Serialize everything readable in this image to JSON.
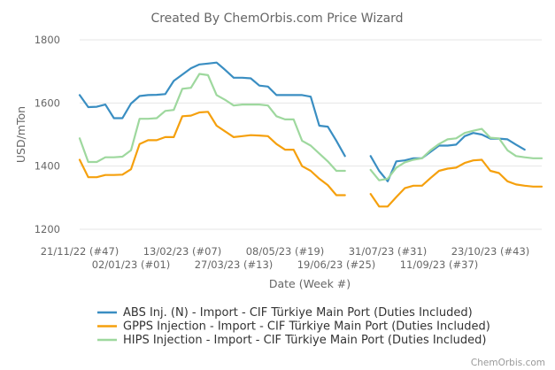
{
  "chart_data": {
    "type": "line",
    "title": "Created By ChemOrbis.com Price Wizard",
    "xlabel": "Date (Week #)",
    "ylabel": "USD/mTon",
    "ylim": [
      1200,
      1800
    ],
    "yticks": [
      1200,
      1400,
      1600,
      1800
    ],
    "x_start": "21/11/22",
    "x_end": "04/12/23",
    "xtick_labels": [
      {
        "label": "21/11/22 (#47)",
        "date": "2022-11-21"
      },
      {
        "label": "02/01/23 (#01)",
        "date": "2023-01-02"
      },
      {
        "label": "13/02/23 (#07)",
        "date": "2023-02-13"
      },
      {
        "label": "27/03/23 (#13)",
        "date": "2023-03-27"
      },
      {
        "label": "08/05/23 (#19)",
        "date": "2023-05-08"
      },
      {
        "label": "19/06/23 (#25)",
        "date": "2023-06-19"
      },
      {
        "label": "31/07/23 (#31)",
        "date": "2023-07-31"
      },
      {
        "label": "11/09/23 (#37)",
        "date": "2023-09-11"
      },
      {
        "label": "23/10/23 (#43)",
        "date": "2023-10-23"
      }
    ],
    "legend_position": "bottom",
    "grid": true,
    "series": [
      {
        "name": "ABS Inj. (N) - Import - CIF Türkiye Main Port  (Duties Included)",
        "color": "#3a8ec2",
        "segments": [
          [
            [
              "2022-11-21",
              1625
            ],
            [
              "2022-11-28",
              1587
            ],
            [
              "2022-12-05",
              1588
            ],
            [
              "2022-12-12",
              1595
            ],
            [
              "2022-12-19",
              1552
            ],
            [
              "2022-12-26",
              1552
            ],
            [
              "2023-01-02",
              1598
            ],
            [
              "2023-01-09",
              1622
            ],
            [
              "2023-01-16",
              1625
            ],
            [
              "2023-01-23",
              1626
            ],
            [
              "2023-01-30",
              1628
            ],
            [
              "2023-02-06",
              1670
            ],
            [
              "2023-02-13",
              1690
            ],
            [
              "2023-02-20",
              1710
            ],
            [
              "2023-02-27",
              1722
            ],
            [
              "2023-03-06",
              1725
            ],
            [
              "2023-03-13",
              1728
            ],
            [
              "2023-03-20",
              1705
            ],
            [
              "2023-03-27",
              1680
            ],
            [
              "2023-04-03",
              1680
            ],
            [
              "2023-04-10",
              1678
            ],
            [
              "2023-04-17",
              1655
            ],
            [
              "2023-04-24",
              1652
            ],
            [
              "2023-05-01",
              1625
            ],
            [
              "2023-05-08",
              1625
            ],
            [
              "2023-05-15",
              1625
            ],
            [
              "2023-05-22",
              1625
            ],
            [
              "2023-05-29",
              1620
            ],
            [
              "2023-06-05",
              1528
            ],
            [
              "2023-06-12",
              1525
            ],
            [
              "2023-06-19",
              1480
            ],
            [
              "2023-06-26",
              1432
            ]
          ],
          [
            [
              "2023-07-17",
              1432
            ],
            [
              "2023-07-24",
              1385
            ],
            [
              "2023-07-31",
              1352
            ],
            [
              "2023-08-07",
              1415
            ],
            [
              "2023-08-14",
              1418
            ],
            [
              "2023-08-21",
              1425
            ],
            [
              "2023-08-28",
              1425
            ],
            [
              "2023-09-04",
              1445
            ],
            [
              "2023-09-11",
              1465
            ],
            [
              "2023-09-18",
              1465
            ],
            [
              "2023-09-25",
              1468
            ],
            [
              "2023-10-02",
              1495
            ],
            [
              "2023-10-09",
              1505
            ],
            [
              "2023-10-16",
              1500
            ],
            [
              "2023-10-23",
              1487
            ],
            [
              "2023-10-30",
              1487
            ],
            [
              "2023-11-06",
              1485
            ],
            [
              "2023-11-13",
              1468
            ],
            [
              "2023-11-20",
              1452
            ]
          ]
        ]
      },
      {
        "name": "GPPS Injection - Import - CIF Türkiye Main Port  (Duties Included)",
        "color": "#f5a00d",
        "segments": [
          [
            [
              "2022-11-21",
              1420
            ],
            [
              "2022-11-28",
              1365
            ],
            [
              "2022-12-05",
              1365
            ],
            [
              "2022-12-12",
              1372
            ],
            [
              "2022-12-19",
              1372
            ],
            [
              "2022-12-26",
              1373
            ],
            [
              "2023-01-02",
              1390
            ],
            [
              "2023-01-09",
              1470
            ],
            [
              "2023-01-16",
              1482
            ],
            [
              "2023-01-23",
              1482
            ],
            [
              "2023-01-30",
              1492
            ],
            [
              "2023-02-06",
              1492
            ],
            [
              "2023-02-13",
              1558
            ],
            [
              "2023-02-20",
              1560
            ],
            [
              "2023-02-27",
              1570
            ],
            [
              "2023-03-06",
              1572
            ],
            [
              "2023-03-13",
              1528
            ],
            [
              "2023-03-20",
              1510
            ],
            [
              "2023-03-27",
              1492
            ],
            [
              "2023-04-03",
              1495
            ],
            [
              "2023-04-10",
              1498
            ],
            [
              "2023-04-17",
              1497
            ],
            [
              "2023-04-24",
              1495
            ],
            [
              "2023-05-01",
              1470
            ],
            [
              "2023-05-08",
              1452
            ],
            [
              "2023-05-15",
              1452
            ],
            [
              "2023-05-22",
              1400
            ],
            [
              "2023-05-29",
              1385
            ],
            [
              "2023-06-05",
              1360
            ],
            [
              "2023-06-12",
              1340
            ],
            [
              "2023-06-19",
              1308
            ],
            [
              "2023-06-26",
              1308
            ]
          ],
          [
            [
              "2023-07-17",
              1312
            ],
            [
              "2023-07-24",
              1272
            ],
            [
              "2023-07-31",
              1272
            ],
            [
              "2023-08-07",
              1302
            ],
            [
              "2023-08-14",
              1330
            ],
            [
              "2023-08-21",
              1338
            ],
            [
              "2023-08-28",
              1338
            ],
            [
              "2023-09-04",
              1362
            ],
            [
              "2023-09-11",
              1385
            ],
            [
              "2023-09-18",
              1392
            ],
            [
              "2023-09-25",
              1395
            ],
            [
              "2023-10-02",
              1410
            ],
            [
              "2023-10-09",
              1418
            ],
            [
              "2023-10-16",
              1420
            ],
            [
              "2023-10-23",
              1385
            ],
            [
              "2023-10-30",
              1378
            ],
            [
              "2023-11-06",
              1352
            ],
            [
              "2023-11-13",
              1342
            ],
            [
              "2023-11-20",
              1338
            ],
            [
              "2023-11-27",
              1335
            ],
            [
              "2023-12-04",
              1335
            ]
          ]
        ]
      },
      {
        "name": "HIPS Injection - Import - CIF Türkiye Main Port  (Duties Included)",
        "color": "#9ed89e",
        "segments": [
          [
            [
              "2022-11-21",
              1488
            ],
            [
              "2022-11-28",
              1413
            ],
            [
              "2022-12-05",
              1413
            ],
            [
              "2022-12-12",
              1428
            ],
            [
              "2022-12-19",
              1428
            ],
            [
              "2022-12-26",
              1430
            ],
            [
              "2023-01-02",
              1450
            ],
            [
              "2023-01-09",
              1550
            ],
            [
              "2023-01-16",
              1550
            ],
            [
              "2023-01-23",
              1552
            ],
            [
              "2023-01-30",
              1575
            ],
            [
              "2023-02-06",
              1578
            ],
            [
              "2023-02-13",
              1645
            ],
            [
              "2023-02-20",
              1648
            ],
            [
              "2023-02-27",
              1692
            ],
            [
              "2023-03-06",
              1688
            ],
            [
              "2023-03-13",
              1625
            ],
            [
              "2023-03-20",
              1610
            ],
            [
              "2023-03-27",
              1592
            ],
            [
              "2023-04-03",
              1595
            ],
            [
              "2023-04-10",
              1595
            ],
            [
              "2023-04-17",
              1595
            ],
            [
              "2023-04-24",
              1592
            ],
            [
              "2023-05-01",
              1558
            ],
            [
              "2023-05-08",
              1548
            ],
            [
              "2023-05-15",
              1548
            ],
            [
              "2023-05-22",
              1480
            ],
            [
              "2023-05-29",
              1465
            ],
            [
              "2023-06-05",
              1440
            ],
            [
              "2023-06-12",
              1415
            ],
            [
              "2023-06-19",
              1385
            ],
            [
              "2023-06-26",
              1385
            ]
          ],
          [
            [
              "2023-07-17",
              1388
            ],
            [
              "2023-07-24",
              1355
            ],
            [
              "2023-07-31",
              1360
            ],
            [
              "2023-08-07",
              1395
            ],
            [
              "2023-08-14",
              1412
            ],
            [
              "2023-08-21",
              1420
            ],
            [
              "2023-08-28",
              1425
            ],
            [
              "2023-09-04",
              1450
            ],
            [
              "2023-09-11",
              1470
            ],
            [
              "2023-09-18",
              1485
            ],
            [
              "2023-09-25",
              1488
            ],
            [
              "2023-10-02",
              1505
            ],
            [
              "2023-10-09",
              1512
            ],
            [
              "2023-10-16",
              1518
            ],
            [
              "2023-10-23",
              1490
            ],
            [
              "2023-10-30",
              1488
            ],
            [
              "2023-11-06",
              1450
            ],
            [
              "2023-11-13",
              1432
            ],
            [
              "2023-11-20",
              1428
            ],
            [
              "2023-11-27",
              1425
            ],
            [
              "2023-12-04",
              1425
            ]
          ]
        ]
      }
    ]
  },
  "credit": "ChemOrbis.com"
}
